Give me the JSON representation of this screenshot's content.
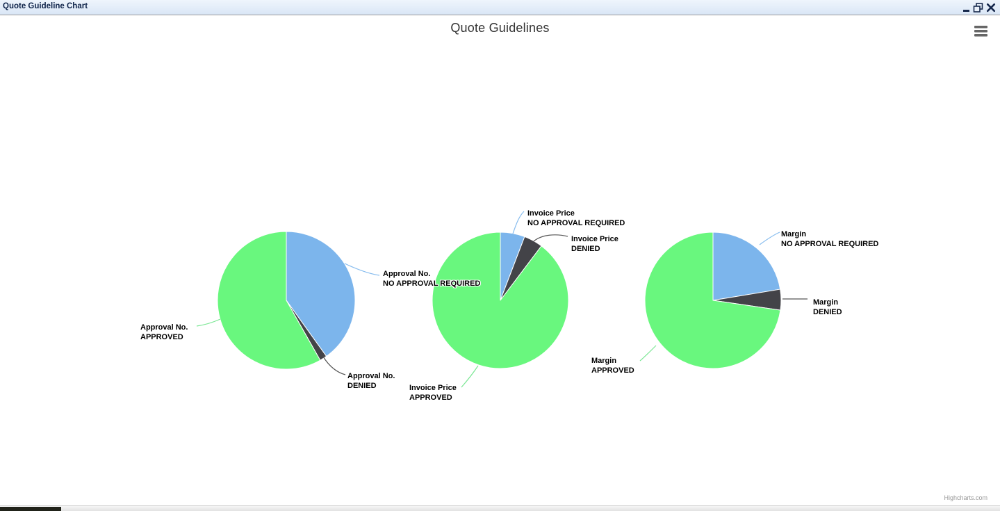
{
  "window": {
    "title": "Quote Guideline Chart"
  },
  "chart": {
    "title": "Quote Guidelines",
    "credit": "Highcharts.com"
  },
  "colors": {
    "approved_green": "#69F77E",
    "no_approval_blue": "#7CB5EC",
    "denied_dark": "#434348",
    "titlebar_bg": "#DCE8F7",
    "titlebar_text": "#0E2349",
    "chart_title_text": "#333333",
    "label_text": "#000000",
    "credit_text": "#999999",
    "menu_icon_gray": "#666666"
  },
  "connector_colors": {
    "no_approval_required": "#86BCEE",
    "denied": "#565656",
    "approved": "#7BE794"
  },
  "chart_data": [
    {
      "type": "pie",
      "name": "Approval No.",
      "categories": [
        "NO APPROVAL REQUIRED",
        "DENIED",
        "APPROVED"
      ],
      "values": [
        40.1,
        1.7,
        58.2
      ],
      "colors": [
        "#7CB5EC",
        "#434348",
        "#69F77E"
      ]
    },
    {
      "type": "pie",
      "name": "Invoice Price",
      "categories": [
        "NO APPROVAL REQUIRED",
        "DENIED",
        "APPROVED"
      ],
      "values": [
        5.8,
        4.5,
        89.7
      ],
      "colors": [
        "#7CB5EC",
        "#434348",
        "#69F77E"
      ]
    },
    {
      "type": "pie",
      "name": "Margin",
      "categories": [
        "NO APPROVAL REQUIRED",
        "DENIED",
        "APPROVED"
      ],
      "values": [
        22.4,
        4.9,
        72.7
      ],
      "colors": [
        "#7CB5EC",
        "#434348",
        "#69F77E"
      ]
    }
  ]
}
